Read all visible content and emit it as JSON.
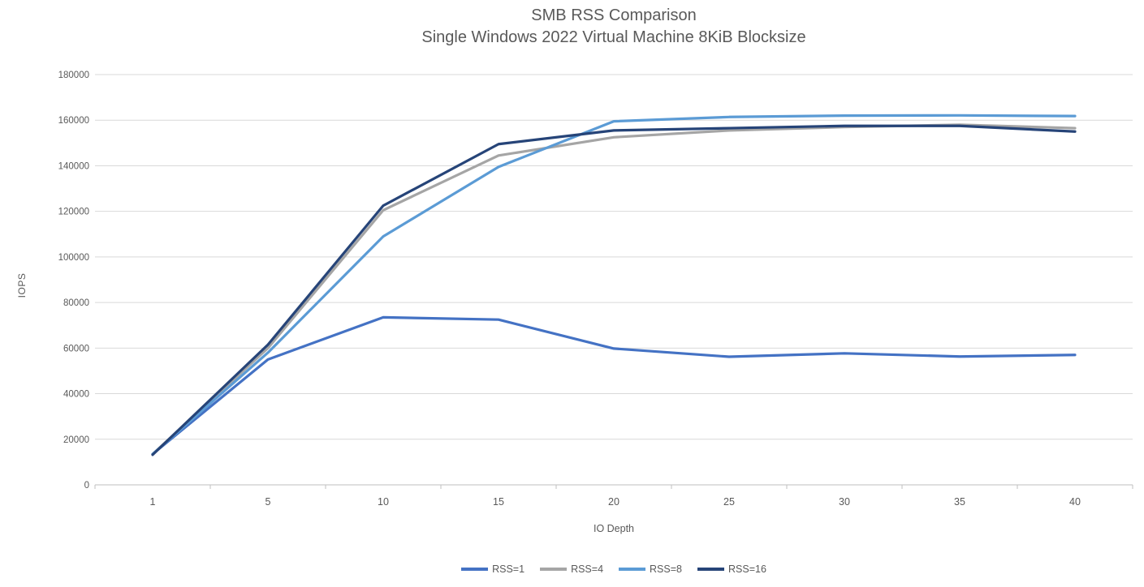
{
  "title": {
    "line1": "SMB RSS Comparison",
    "line2": "Single Windows 2022 Virtual Machine 8KiB Blocksize"
  },
  "chart_data": {
    "type": "line",
    "title": "SMB RSS Comparison",
    "subtitle": "Single Windows 2022 Virtual Machine 8KiB Blocksize",
    "xlabel": "IO Depth",
    "ylabel": "IOPS",
    "categories": [
      1,
      5,
      10,
      15,
      20,
      25,
      30,
      35,
      40
    ],
    "y_ticks": [
      0,
      20000,
      40000,
      60000,
      80000,
      100000,
      120000,
      140000,
      160000,
      180000
    ],
    "ylim": [
      0,
      180000
    ],
    "grid": "horizontal",
    "legend_position": "bottom",
    "series": [
      {
        "name": "RSS=1",
        "color": "#4472C4",
        "values": [
          13500,
          55000,
          73500,
          72500,
          59800,
          56200,
          57700,
          56300,
          57000
        ]
      },
      {
        "name": "RSS=4",
        "color": "#A5A5A5",
        "values": [
          13500,
          60000,
          120500,
          144500,
          152500,
          155500,
          157000,
          158000,
          156500
        ]
      },
      {
        "name": "RSS=8",
        "color": "#5B9BD5",
        "values": [
          13500,
          58000,
          109000,
          139500,
          159500,
          161400,
          162000,
          162100,
          161800
        ]
      },
      {
        "name": "RSS=16",
        "color": "#264478",
        "values": [
          13200,
          61500,
          122500,
          149500,
          155500,
          156500,
          157500,
          157500,
          155000
        ]
      }
    ]
  },
  "colors": {
    "background": "#FFFFFF",
    "grid": "#D9D9D9",
    "axis": "#BFBFBF",
    "text": "#595959",
    "title": "#595959"
  }
}
